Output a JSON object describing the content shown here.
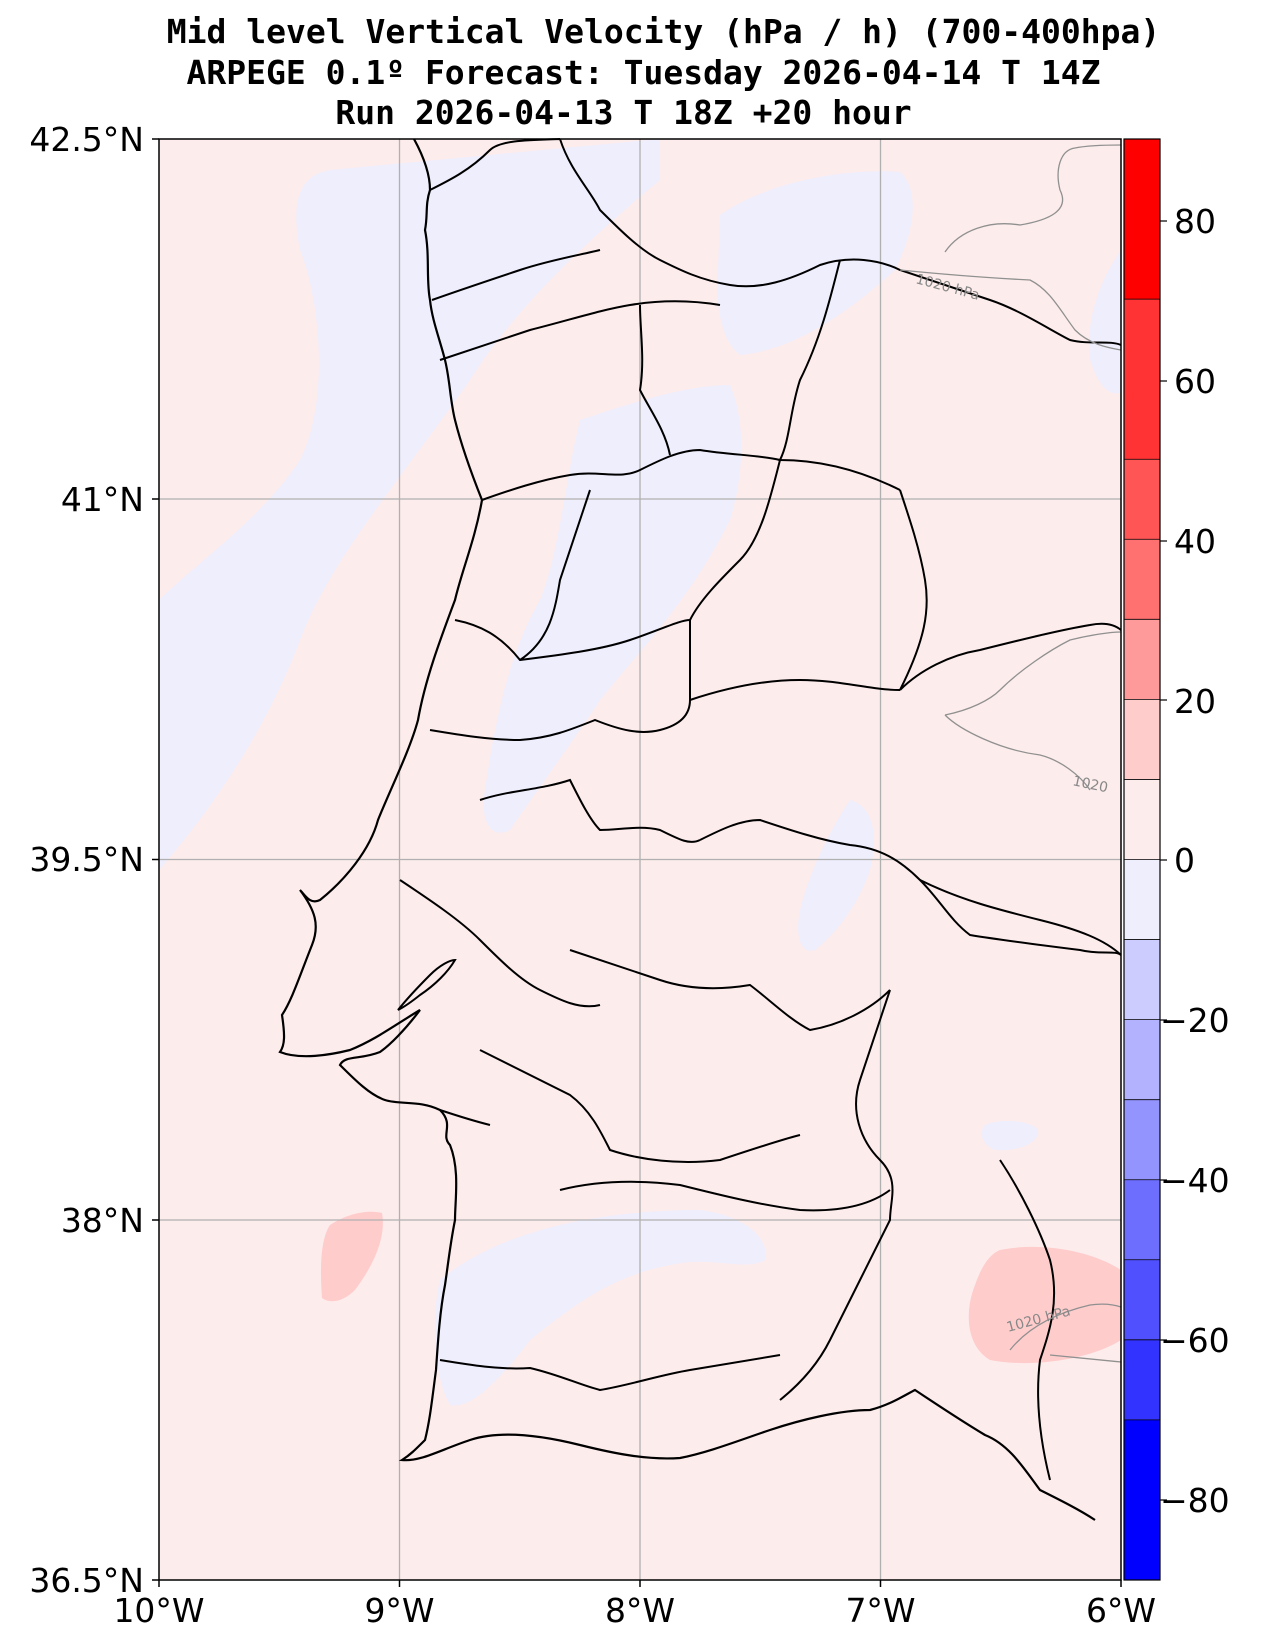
{
  "title": {
    "line1": "Mid level Vertical Velocity (hPa / h)  (700-400hpa)",
    "line2": "ARPEGE 0.1º Forecast: Tuesday 2026-04-14 T 14Z",
    "line3": "Run 2026-04-13 T 18Z +20 hour"
  },
  "map": {
    "lon_range": [
      -10,
      -6
    ],
    "lat_range": [
      36.5,
      42.5
    ],
    "lon_ticks": [
      "10°W",
      "9°W",
      "8°W",
      "7°W",
      "6°W"
    ],
    "lat_ticks": [
      "42.5°N",
      "41°N",
      "39.5°N",
      "38°N",
      "36.5°N"
    ],
    "gridlines": true,
    "background_color": "#fdecec",
    "isobar_labels": [
      "1020 hPa",
      "1020",
      "1020 hPa"
    ]
  },
  "colorbar": {
    "ticks": [
      "80",
      "60",
      "40",
      "20",
      "0",
      "−20",
      "−40",
      "−60",
      "−80"
    ],
    "range": [
      -90,
      90
    ],
    "bands": [
      {
        "from": 70,
        "to": 90,
        "color": "#ff0000"
      },
      {
        "from": 50,
        "to": 70,
        "color": "#ff3333"
      },
      {
        "from": 40,
        "to": 50,
        "color": "#ff5555"
      },
      {
        "from": 30,
        "to": 40,
        "color": "#ff7070"
      },
      {
        "from": 20,
        "to": 30,
        "color": "#ff9a9a"
      },
      {
        "from": 10,
        "to": 20,
        "color": "#ffcccc"
      },
      {
        "from": 0,
        "to": 10,
        "color": "#fdecec"
      },
      {
        "from": -10,
        "to": 0,
        "color": "#eeeefd"
      },
      {
        "from": -20,
        "to": -10,
        "color": "#ccccfe"
      },
      {
        "from": -30,
        "to": -20,
        "color": "#b2b2fe"
      },
      {
        "from": -40,
        "to": -30,
        "color": "#9494fe"
      },
      {
        "from": -50,
        "to": -40,
        "color": "#6e6efe"
      },
      {
        "from": -60,
        "to": -50,
        "color": "#5050ff"
      },
      {
        "from": -70,
        "to": -60,
        "color": "#3333ff"
      },
      {
        "from": -90,
        "to": -70,
        "color": "#0000ff"
      }
    ]
  }
}
